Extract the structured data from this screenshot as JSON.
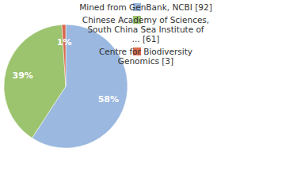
{
  "chart_data": {
    "type": "pie",
    "categories": [
      "Mined from GenBank, NCBI [92]",
      "Chinese Academy of Sciences, South China Sea Institute of ... [61]",
      "Centre for Biodiversity Genomics [3]"
    ],
    "values": [
      58,
      39,
      1
    ],
    "value_labels": [
      "58%",
      "39%",
      "1%"
    ],
    "colors": [
      "#9bb8e0",
      "#9cc36e",
      "#d9694b"
    ],
    "data_labels": true,
    "legend": "right"
  }
}
